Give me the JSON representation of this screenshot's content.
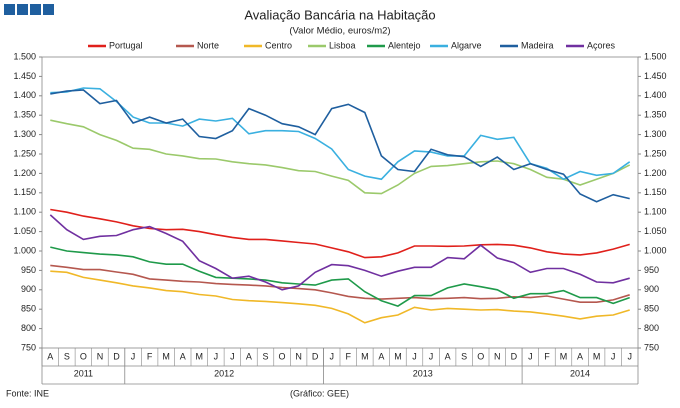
{
  "chart_data": {
    "type": "line",
    "title": "Avaliação Bancária na Habitação",
    "subtitle": "(Valor Médio, euros/m2)",
    "source": "Fonte: INE",
    "credit": "(Gráfico: GEE)",
    "categories": [
      "A",
      "S",
      "O",
      "N",
      "D",
      "J",
      "F",
      "M",
      "A",
      "M",
      "J",
      "J",
      "A",
      "S",
      "O",
      "N",
      "D",
      "J",
      "F",
      "M",
      "A",
      "M",
      "J",
      "J",
      "A",
      "S",
      "O",
      "N",
      "D",
      "J",
      "F",
      "M",
      "A",
      "M",
      "J",
      "J"
    ],
    "years": [
      "2011",
      "2012",
      "2013",
      "2014"
    ],
    "ylim": [
      750,
      1500
    ],
    "yticks": [
      {
        "value": 1500,
        "label": "1.500"
      },
      {
        "value": 1450,
        "label": "1.450"
      },
      {
        "value": 1400,
        "label": "1.400"
      },
      {
        "value": 1350,
        "label": "1.350"
      },
      {
        "value": 1300,
        "label": "1.300"
      },
      {
        "value": 1250,
        "label": "1.250"
      },
      {
        "value": 1200,
        "label": "1.200"
      },
      {
        "value": 1150,
        "label": "1.150"
      },
      {
        "value": 1100,
        "label": "1.100"
      },
      {
        "value": 1050,
        "label": "1.050"
      },
      {
        "value": 1000,
        "label": "1.000"
      },
      950,
      900,
      850,
      800,
      750
    ],
    "grid": false,
    "legend": "top",
    "series": [
      {
        "name": "Portugal",
        "color": "#e0201b",
        "values": [
          1107,
          1100,
          1090,
          1083,
          1075,
          1065,
          1058,
          1055,
          1056,
          1050,
          1042,
          1035,
          1030,
          1030,
          1026,
          1022,
          1018,
          1008,
          998,
          983,
          985,
          995,
          1013,
          1013,
          1012,
          1013,
          1016,
          1017,
          1015,
          1008,
          998,
          992,
          990,
          995,
          1005,
          1017
        ]
      },
      {
        "name": "Norte",
        "color": "#b5584f",
        "values": [
          963,
          958,
          952,
          952,
          946,
          940,
          928,
          925,
          922,
          920,
          916,
          914,
          912,
          910,
          906,
          903,
          900,
          892,
          883,
          878,
          876,
          878,
          880,
          877,
          878,
          880,
          877,
          878,
          882,
          880,
          884,
          876,
          868,
          868,
          874,
          887
        ]
      },
      {
        "name": "Centro",
        "color": "#f0b828",
        "values": [
          948,
          945,
          932,
          925,
          918,
          910,
          905,
          898,
          895,
          888,
          884,
          875,
          872,
          870,
          867,
          864,
          860,
          852,
          838,
          815,
          828,
          835,
          855,
          848,
          852,
          850,
          848,
          849,
          845,
          843,
          838,
          832,
          825,
          832,
          835,
          848
        ]
      },
      {
        "name": "Lisboa",
        "color": "#9bc96b",
        "values": [
          1337,
          1328,
          1320,
          1300,
          1285,
          1265,
          1262,
          1250,
          1245,
          1238,
          1237,
          1230,
          1225,
          1222,
          1215,
          1207,
          1205,
          1193,
          1182,
          1150,
          1148,
          1170,
          1200,
          1218,
          1220,
          1225,
          1230,
          1232,
          1225,
          1210,
          1190,
          1185,
          1170,
          1185,
          1200,
          1222
        ]
      },
      {
        "name": "Alentejo",
        "color": "#1f9a4a",
        "values": [
          1010,
          1000,
          996,
          992,
          990,
          985,
          972,
          966,
          966,
          948,
          932,
          930,
          928,
          925,
          918,
          915,
          912,
          925,
          928,
          895,
          872,
          858,
          885,
          885,
          905,
          915,
          908,
          900,
          878,
          890,
          890,
          898,
          880,
          880,
          865,
          880
        ]
      },
      {
        "name": "Algarve",
        "color": "#3ab0e0",
        "values": [
          1408,
          1410,
          1420,
          1418,
          1385,
          1345,
          1330,
          1330,
          1322,
          1340,
          1335,
          1342,
          1302,
          1310,
          1310,
          1308,
          1290,
          1263,
          1210,
          1193,
          1185,
          1230,
          1258,
          1255,
          1245,
          1245,
          1298,
          1288,
          1293,
          1225,
          1213,
          1185,
          1205,
          1195,
          1200,
          1230
        ]
      },
      {
        "name": "Madeira",
        "color": "#1f5f9f",
        "values": [
          1405,
          1412,
          1415,
          1380,
          1388,
          1330,
          1345,
          1330,
          1340,
          1295,
          1290,
          1310,
          1367,
          1350,
          1328,
          1320,
          1300,
          1367,
          1378,
          1357,
          1245,
          1210,
          1205,
          1262,
          1248,
          1243,
          1218,
          1242,
          1210,
          1225,
          1210,
          1198,
          1147,
          1127,
          1145,
          1135
        ]
      },
      {
        "name": "Açores",
        "color": "#7030a0",
        "values": [
          1093,
          1055,
          1030,
          1038,
          1040,
          1055,
          1063,
          1045,
          1025,
          975,
          955,
          930,
          935,
          920,
          900,
          910,
          945,
          965,
          962,
          950,
          935,
          948,
          958,
          958,
          983,
          980,
          1015,
          982,
          970,
          945,
          955,
          955,
          940,
          920,
          918,
          930
        ]
      }
    ]
  }
}
